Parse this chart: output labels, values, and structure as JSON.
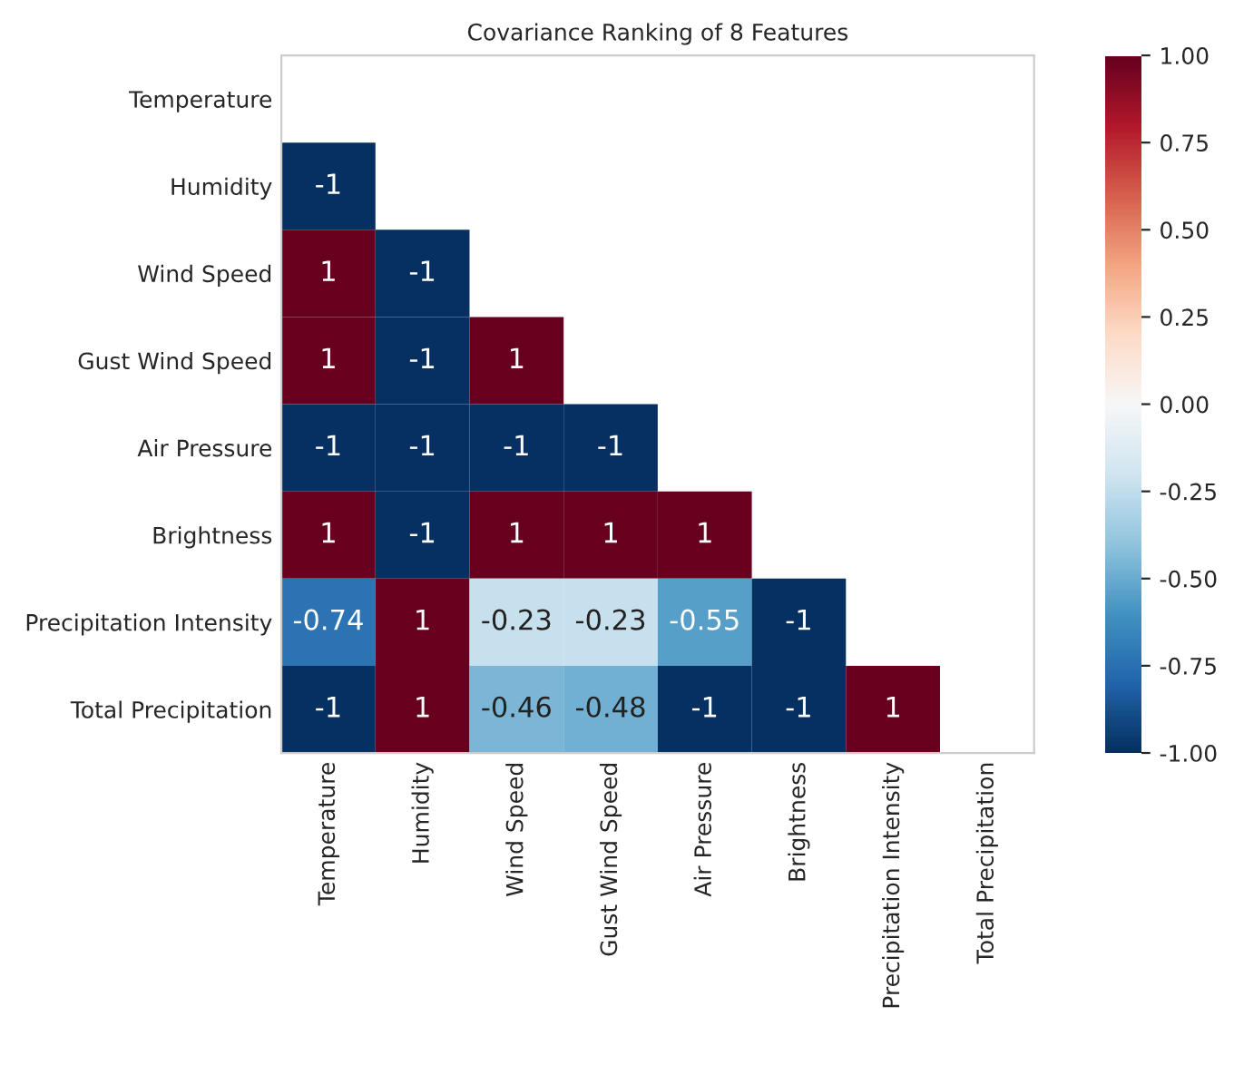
{
  "chart_data": {
    "type": "heatmap",
    "title": "Covariance Ranking of 8 Features",
    "categories": [
      "Temperature",
      "Humidity",
      "Wind Speed",
      "Gust Wind Speed",
      "Air Pressure",
      "Brightness",
      "Precipitation Intensity",
      "Total Precipitation"
    ],
    "y_categories": [
      "Temperature",
      "Humidity",
      "Wind Speed",
      "Gust Wind Speed",
      "Air Pressure",
      "Brightness",
      "Precipitation Intensity",
      "Total Precipitation"
    ],
    "cells": [
      [
        null,
        null,
        null,
        null,
        null,
        null,
        null,
        null
      ],
      [
        -1,
        null,
        null,
        null,
        null,
        null,
        null,
        null
      ],
      [
        1,
        -1,
        null,
        null,
        null,
        null,
        null,
        null
      ],
      [
        1,
        -1,
        1,
        null,
        null,
        null,
        null,
        null
      ],
      [
        -1,
        -1,
        -1,
        -1,
        null,
        null,
        null,
        null
      ],
      [
        1,
        -1,
        1,
        1,
        1,
        null,
        null,
        null
      ],
      [
        -0.74,
        1,
        -0.23,
        -0.23,
        -0.55,
        -1,
        null,
        null
      ],
      [
        -1,
        1,
        -0.46,
        -0.48,
        -1,
        -1,
        1,
        null
      ]
    ],
    "data_labels": true,
    "clim": [
      -1,
      1
    ],
    "cticks": [
      {
        "value": -1,
        "label": "-1.00"
      },
      {
        "value": -0.75,
        "label": "-0.75"
      },
      {
        "value": -0.5,
        "label": "-0.50"
      },
      {
        "value": -0.25,
        "label": "-0.25"
      },
      {
        "value": 0,
        "label": "0.00"
      },
      {
        "value": 0.25,
        "label": "0.25"
      },
      {
        "value": 0.5,
        "label": "0.50"
      },
      {
        "value": 0.75,
        "label": "0.75"
      },
      {
        "value": 1,
        "label": "1.00"
      }
    ]
  }
}
